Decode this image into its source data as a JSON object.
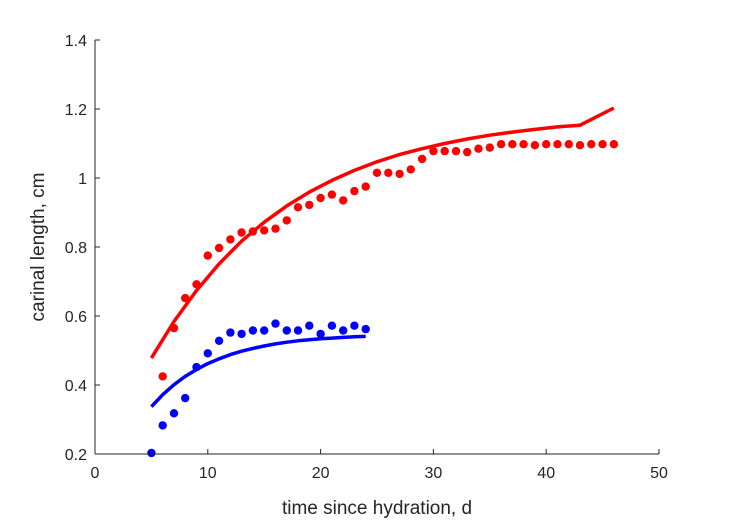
{
  "chart_data": {
    "type": "scatter",
    "xlabel": "time since hydration, d",
    "ylabel": "carinal length, cm",
    "xlim": [
      0,
      50
    ],
    "ylim": [
      0.2,
      1.4
    ],
    "xticks": [
      "0",
      "10",
      "20",
      "30",
      "40",
      "50"
    ],
    "yticks": [
      "0.2",
      "0.4",
      "0.6",
      "0.8",
      "1",
      "1.2",
      "1.4"
    ],
    "grid": false,
    "series": [
      {
        "kind": "points",
        "color": "#ff0000",
        "x": [
          6,
          7,
          8,
          9,
          10,
          11,
          12,
          13,
          14,
          15,
          16,
          17,
          18,
          19,
          20,
          21,
          22,
          23,
          24,
          25,
          26,
          27,
          28,
          29,
          30,
          31,
          32,
          33,
          34,
          35,
          36,
          37,
          38,
          39,
          40,
          41,
          42,
          43,
          44,
          45,
          46
        ],
        "y": [
          0.425,
          0.565,
          0.652,
          0.692,
          0.775,
          0.797,
          0.822,
          0.842,
          0.845,
          0.848,
          0.853,
          0.877,
          0.915,
          0.922,
          0.942,
          0.952,
          0.935,
          0.962,
          0.975,
          1.015,
          1.015,
          1.012,
          1.025,
          1.055,
          1.078,
          1.078,
          1.078,
          1.075,
          1.085,
          1.088,
          1.098,
          1.098,
          1.098,
          1.095,
          1.098,
          1.098,
          1.098,
          1.095,
          1.098,
          1.098,
          1.098
        ]
      },
      {
        "kind": "points",
        "color": "#0000ff",
        "x": [
          5,
          6,
          7,
          8,
          9,
          10,
          11,
          12,
          13,
          14,
          15,
          16,
          17,
          18,
          19,
          20,
          21,
          22,
          23,
          24
        ],
        "y": [
          0.203,
          0.283,
          0.318,
          0.362,
          0.452,
          0.492,
          0.528,
          0.552,
          0.548,
          0.558,
          0.558,
          0.578,
          0.558,
          0.558,
          0.572,
          0.548,
          0.572,
          0.558,
          0.572,
          0.562
        ]
      },
      {
        "kind": "line",
        "color": "#ff0000",
        "x": [
          5,
          7,
          9,
          11,
          13,
          15,
          17,
          19,
          21,
          23,
          25,
          27,
          29,
          31,
          33,
          35,
          37,
          39,
          41,
          43,
          46
        ],
        "y": [
          0.478,
          0.584,
          0.674,
          0.751,
          0.817,
          0.872,
          0.919,
          0.959,
          0.993,
          1.022,
          1.047,
          1.068,
          1.085,
          1.1,
          1.113,
          1.124,
          1.133,
          1.141,
          1.148,
          1.153,
          1.203
        ]
      },
      {
        "kind": "line",
        "color": "#0000ff",
        "x": [
          5,
          6,
          7,
          8,
          9,
          10,
          11,
          12,
          13,
          14,
          15,
          16,
          17,
          18,
          19,
          20,
          21,
          22,
          23,
          24
        ],
        "y": [
          0.337,
          0.372,
          0.401,
          0.425,
          0.445,
          0.462,
          0.476,
          0.488,
          0.498,
          0.506,
          0.513,
          0.519,
          0.524,
          0.528,
          0.531,
          0.534,
          0.536,
          0.538,
          0.54,
          0.541
        ]
      }
    ]
  }
}
